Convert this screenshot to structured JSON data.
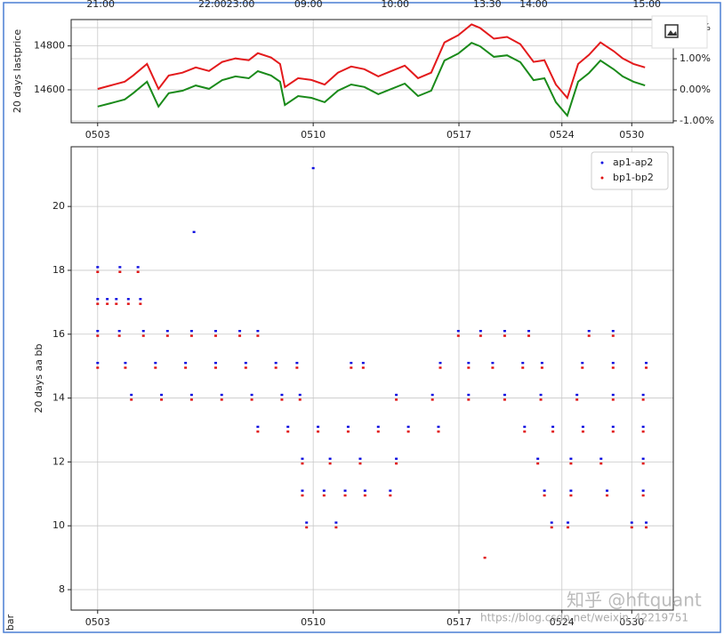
{
  "chart_data": [
    {
      "type": "line",
      "ylabel": "20 days lastprice",
      "x": [
        44,
        66,
        89,
        103,
        126,
        145,
        162,
        185,
        207,
        229,
        251,
        273,
        295,
        310,
        332,
        347,
        355,
        377,
        399,
        421,
        443,
        465,
        487,
        510,
        532,
        554,
        576,
        598,
        620,
        643,
        665,
        679,
        702,
        724,
        746,
        768,
        786,
        805,
        824,
        842,
        860,
        879,
        901,
        916,
        934,
        953
      ],
      "series": [
        {
          "color": "#e31a1c",
          "values": [
            14604,
            14620,
            14637,
            14665,
            14718,
            14604,
            14665,
            14678,
            14702,
            14686,
            14727,
            14743,
            14735,
            14767,
            14747,
            14718,
            14612,
            14653,
            14645,
            14624,
            14678,
            14706,
            14694,
            14661,
            14686,
            14710,
            14653,
            14678,
            14816,
            14849,
            14898,
            14882,
            14833,
            14841,
            14808,
            14727,
            14735,
            14624,
            14563,
            14718,
            14759,
            14816,
            14776,
            14743,
            14718,
            14702
          ]
        },
        {
          "color": "#1a8a1a",
          "axis": "y2",
          "values": [
            -0.54,
            -0.43,
            -0.31,
            -0.11,
            0.26,
            -0.54,
            -0.11,
            -0.03,
            0.14,
            0.03,
            0.31,
            0.43,
            0.37,
            0.6,
            0.46,
            0.26,
            -0.49,
            -0.2,
            -0.26,
            -0.4,
            -0.03,
            0.17,
            0.09,
            -0.14,
            0.03,
            0.2,
            -0.2,
            -0.03,
            0.94,
            1.17,
            1.51,
            1.4,
            1.06,
            1.11,
            0.89,
            0.31,
            0.37,
            -0.4,
            -0.83,
            0.26,
            0.54,
            0.94,
            0.66,
            0.43,
            0.26,
            0.14
          ]
        }
      ],
      "xlim": [
        0,
        1000
      ],
      "xticks": [
        {
          "value": 44,
          "label": "0503"
        },
        {
          "value": 402,
          "label": "0510"
        },
        {
          "value": 644,
          "label": "0517"
        },
        {
          "value": 815,
          "label": "0524"
        },
        {
          "value": 931,
          "label": "0530"
        }
      ],
      "x2ticks": [
        {
          "value": 49,
          "label": "21:00"
        },
        {
          "value": 258,
          "label": "22:0023:00"
        },
        {
          "value": 394,
          "label": "09:00"
        },
        {
          "value": 538,
          "label": "10:00"
        },
        {
          "value": 691,
          "label": "13:30"
        },
        {
          "value": 768,
          "label": "14:00"
        },
        {
          "value": 956,
          "label": "15:00"
        }
      ],
      "ylim": [
        14450,
        14920
      ],
      "yticks": [
        14600,
        14800
      ],
      "y2lim": [
        -1.06,
        2.26
      ],
      "y2ticks": [
        {
          "value": -1,
          "label": "-1.00%"
        },
        {
          "value": 0,
          "label": "0.00%"
        },
        {
          "value": 1,
          "label": "1.00%"
        },
        {
          "value": 2,
          "label": "2.00%"
        }
      ],
      "grid": true
    },
    {
      "type": "scatter",
      "ylabel": "20 days aa bb",
      "xlabel": "bar",
      "series": [
        {
          "name": "ap1-ap2",
          "color": "#1010e0",
          "x": [
            44,
            60,
            75,
            95,
            115,
            44,
            81,
            111,
            44,
            80,
            120,
            160,
            200,
            240,
            280,
            310,
            643,
            680,
            720,
            760,
            860,
            900,
            44,
            90,
            140,
            190,
            240,
            290,
            340,
            375,
            465,
            485,
            613,
            660,
            700,
            750,
            782,
            849,
            900,
            955,
            100,
            150,
            200,
            250,
            300,
            350,
            380,
            540,
            600,
            660,
            720,
            780,
            840,
            900,
            950,
            310,
            360,
            410,
            460,
            510,
            560,
            610,
            753,
            800,
            850,
            900,
            950,
            384,
            430,
            480,
            540,
            775,
            830,
            880,
            950,
            384,
            420,
            455,
            488,
            530,
            786,
            830,
            890,
            950,
            391,
            440,
            798,
            825,
            931,
            955,
            402,
            204
          ],
          "values": [
            17.1,
            17.1,
            17.1,
            17.1,
            17.1,
            18.1,
            18.1,
            18.1,
            16.1,
            16.1,
            16.1,
            16.1,
            16.1,
            16.1,
            16.1,
            16.1,
            16.1,
            16.1,
            16.1,
            16.1,
            16.1,
            16.1,
            15.1,
            15.1,
            15.1,
            15.1,
            15.1,
            15.1,
            15.1,
            15.1,
            15.1,
            15.1,
            15.1,
            15.1,
            15.1,
            15.1,
            15.1,
            15.1,
            15.1,
            15.1,
            14.1,
            14.1,
            14.1,
            14.1,
            14.1,
            14.1,
            14.1,
            14.1,
            14.1,
            14.1,
            14.1,
            14.1,
            14.1,
            14.1,
            14.1,
            13.1,
            13.1,
            13.1,
            13.1,
            13.1,
            13.1,
            13.1,
            13.1,
            13.1,
            13.1,
            13.1,
            13.1,
            12.1,
            12.1,
            12.1,
            12.1,
            12.1,
            12.1,
            12.1,
            12.1,
            11.1,
            11.1,
            11.1,
            11.1,
            11.1,
            11.1,
            11.1,
            11.1,
            11.1,
            10.1,
            10.1,
            10.1,
            10.1,
            10.1,
            10.1,
            21.2,
            19.2
          ]
        },
        {
          "name": "bp1-bp2",
          "color": "#e01010",
          "x": [
            44,
            60,
            75,
            95,
            115,
            44,
            81,
            111,
            44,
            80,
            120,
            160,
            200,
            240,
            280,
            310,
            643,
            680,
            720,
            760,
            860,
            900,
            44,
            90,
            140,
            190,
            240,
            290,
            340,
            375,
            465,
            485,
            613,
            660,
            700,
            750,
            782,
            849,
            900,
            955,
            100,
            150,
            200,
            250,
            300,
            350,
            380,
            540,
            600,
            660,
            720,
            780,
            840,
            900,
            950,
            310,
            360,
            410,
            460,
            510,
            560,
            610,
            753,
            800,
            850,
            900,
            950,
            384,
            430,
            480,
            540,
            775,
            830,
            880,
            950,
            384,
            420,
            455,
            488,
            530,
            786,
            830,
            890,
            950,
            391,
            440,
            798,
            825,
            931,
            955,
            687
          ],
          "values": [
            16.95,
            16.95,
            16.95,
            16.95,
            16.95,
            17.95,
            17.95,
            17.95,
            15.95,
            15.95,
            15.95,
            15.95,
            15.95,
            15.95,
            15.95,
            15.95,
            15.95,
            15.95,
            15.95,
            15.95,
            15.95,
            15.95,
            14.95,
            14.95,
            14.95,
            14.95,
            14.95,
            14.95,
            14.95,
            14.95,
            14.95,
            14.95,
            14.95,
            14.95,
            14.95,
            14.95,
            14.95,
            14.95,
            14.95,
            14.95,
            13.95,
            13.95,
            13.95,
            13.95,
            13.95,
            13.95,
            13.95,
            13.95,
            13.95,
            13.95,
            13.95,
            13.95,
            13.95,
            13.95,
            13.95,
            12.95,
            12.95,
            12.95,
            12.95,
            12.95,
            12.95,
            12.95,
            12.95,
            12.95,
            12.95,
            12.95,
            12.95,
            11.95,
            11.95,
            11.95,
            11.95,
            11.95,
            11.95,
            11.95,
            11.95,
            10.95,
            10.95,
            10.95,
            10.95,
            10.95,
            10.95,
            10.95,
            10.95,
            10.95,
            9.95,
            9.95,
            9.95,
            9.95,
            9.95,
            9.95,
            9.0
          ]
        }
      ],
      "xlim": [
        0,
        1000
      ],
      "xticks": [
        {
          "value": 44,
          "label": "0503"
        },
        {
          "value": 402,
          "label": "0510"
        },
        {
          "value": 644,
          "label": "0517"
        },
        {
          "value": 815,
          "label": "0524"
        },
        {
          "value": 931,
          "label": "0530"
        }
      ],
      "ylim": [
        7.36,
        21.87
      ],
      "yticks": [
        8,
        10,
        12,
        14,
        16,
        18,
        20
      ],
      "grid": true,
      "legend": "upper right"
    }
  ],
  "watermark": {
    "brand": "知乎 @hftquant",
    "url": "https://blog.csdn.net/weixin_42219751"
  }
}
